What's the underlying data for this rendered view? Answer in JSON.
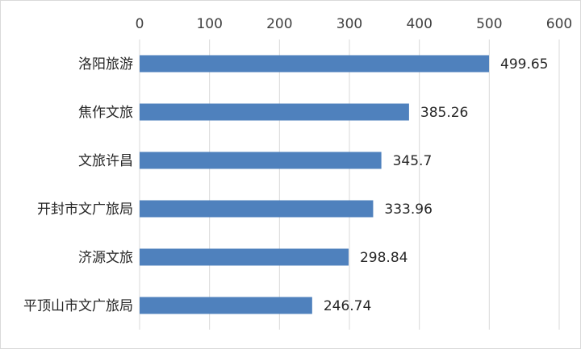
{
  "chart_data": {
    "type": "bar",
    "orientation": "horizontal",
    "title": "",
    "xlabel": "",
    "ylabel": "",
    "categories": [
      "洛阳旅游",
      "焦作文旅",
      "文旅许昌",
      "开封市文广旅局",
      "济源文旅",
      "平顶山市文广旅局"
    ],
    "values": [
      499.65,
      385.26,
      345.7,
      333.96,
      298.84,
      246.74
    ],
    "value_labels": [
      "499.65",
      "385.26",
      "345.7",
      "333.96",
      "298.84",
      "246.74"
    ],
    "xlim": [
      0,
      600
    ],
    "xticks": [
      0,
      100,
      200,
      300,
      400,
      500,
      600
    ],
    "xtick_labels": [
      "0",
      "100",
      "200",
      "300",
      "400",
      "500",
      "600"
    ],
    "axis_position": "top",
    "grid": true,
    "legend": "none",
    "colors": {
      "bar": "#4f81bd",
      "grid": "#d9d9d9",
      "text": "#262626"
    }
  }
}
